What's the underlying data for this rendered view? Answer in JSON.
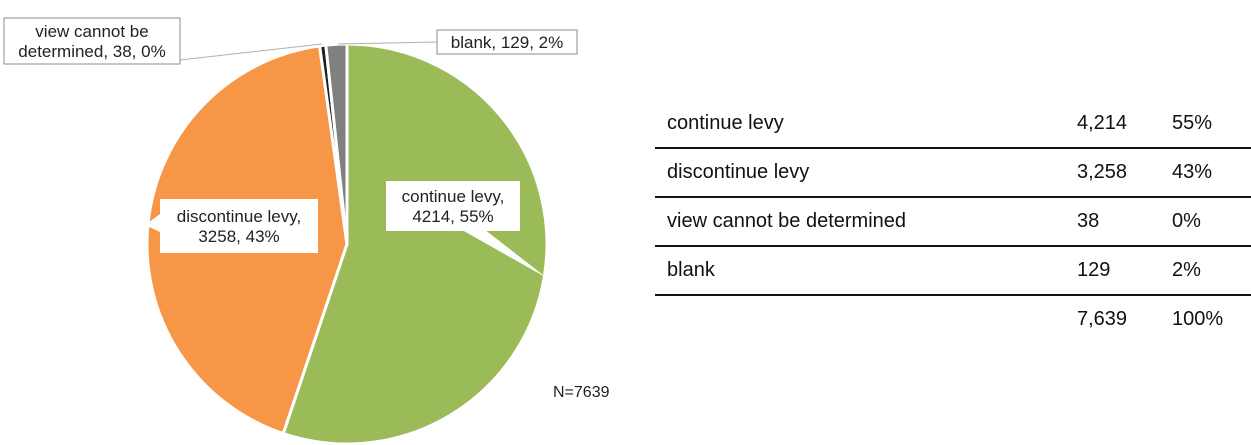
{
  "chart_data": {
    "type": "pie",
    "slices": [
      {
        "label": "continue levy",
        "value": 4214,
        "pct": "55%",
        "color": "#9bbb59",
        "label_text": [
          "continue levy,",
          "4214, 55%"
        ]
      },
      {
        "label": "discontinue levy",
        "value": 3258,
        "pct": "43%",
        "color": "#f79646",
        "label_text": [
          "discontinue levy,",
          "3258, 43%"
        ]
      },
      {
        "label": "view cannot be determined",
        "value": 38,
        "pct": "0%",
        "color": "#1f1f1f",
        "label_text": [
          "view cannot be",
          "determined, 38, 0%"
        ]
      },
      {
        "label": "blank",
        "value": 129,
        "pct": "2%",
        "color": "#808080",
        "label_text": [
          "blank, 129, 2%"
        ]
      }
    ],
    "note": "N=7639"
  },
  "table": {
    "rows": [
      {
        "label": "continue levy",
        "count": "4,214",
        "pct": "55%"
      },
      {
        "label": "discontinue levy",
        "count": "3,258",
        "pct": "43%"
      },
      {
        "label": "view cannot be determined",
        "count": "38",
        "pct": "0%"
      },
      {
        "label": "blank",
        "count": "129",
        "pct": "2%"
      }
    ],
    "total": {
      "count": "7,639",
      "pct": "100%"
    }
  }
}
